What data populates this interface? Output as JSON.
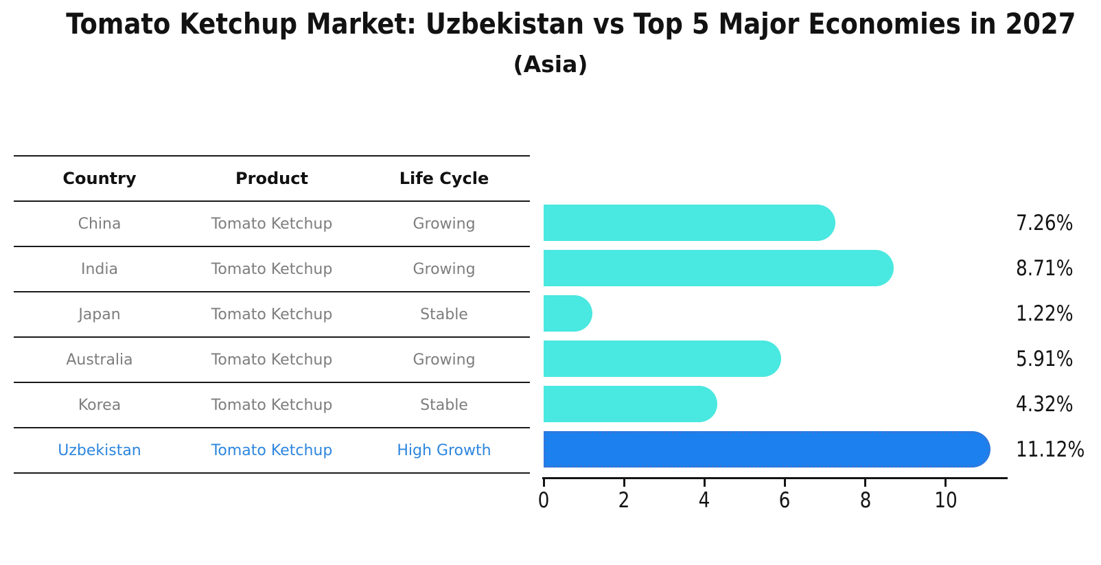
{
  "title": "Tomato Ketchup Market: Uzbekistan vs Top 5 Major Economies in 2027",
  "subtitle": "(Asia)",
  "table": {
    "headers": {
      "country": "Country",
      "product": "Product",
      "life_cycle": "Life Cycle"
    },
    "rows": [
      {
        "country": "China",
        "product": "Tomato Ketchup",
        "life_cycle": "Growing",
        "highlight": false
      },
      {
        "country": "India",
        "product": "Tomato Ketchup",
        "life_cycle": "Growing",
        "highlight": false
      },
      {
        "country": "Japan",
        "product": "Tomato Ketchup",
        "life_cycle": "Stable",
        "highlight": false
      },
      {
        "country": "Australia",
        "product": "Tomato Ketchup",
        "life_cycle": "Growing",
        "highlight": false
      },
      {
        "country": "Korea",
        "product": "Tomato Ketchup",
        "life_cycle": "Stable",
        "highlight": false
      },
      {
        "country": "Uzbekistan",
        "product": "Tomato Ketchup",
        "life_cycle": "High Growth",
        "highlight": true
      }
    ]
  },
  "chart_data": {
    "type": "bar",
    "orientation": "horizontal",
    "title": "Tomato Ketchup Market: Uzbekistan vs Top 5 Major Economies in 2027",
    "subtitle": "(Asia)",
    "categories": [
      "China",
      "India",
      "Japan",
      "Australia",
      "Korea",
      "Uzbekistan"
    ],
    "values": [
      7.26,
      8.71,
      1.22,
      5.91,
      4.32,
      11.12
    ],
    "value_labels": [
      "7.26%",
      "8.71%",
      "1.22%",
      "5.91%",
      "4.32%",
      "11.12%"
    ],
    "xlabel": "",
    "ylabel": "",
    "xlim": [
      0,
      11.54
    ],
    "xticks": [
      0,
      2,
      4,
      6,
      8,
      10
    ],
    "grid": false,
    "legend": false,
    "bar_color": "#49e8e0",
    "highlight_bar_color": "#1c80ee",
    "highlight_index": 5,
    "text_color_default": "#7d7d7d",
    "text_color_highlight": "#2e86de"
  }
}
